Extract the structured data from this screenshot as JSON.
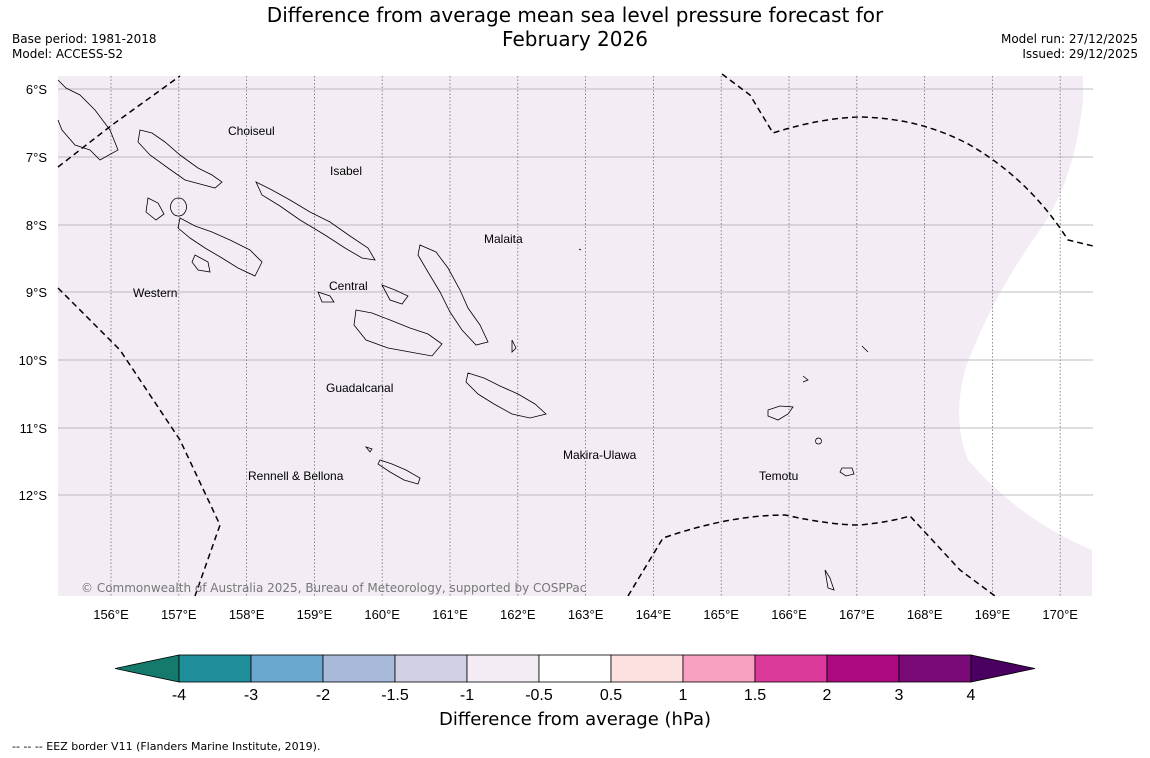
{
  "title_line1": "Difference from average mean sea level pressure forecast for",
  "title_line2": "February 2026",
  "base_period": "Base period: 1981-2018",
  "model": "Model: ACCESS-S2",
  "model_run": "Model run: 27/12/2025",
  "issued": "Issued: 29/12/2025",
  "copyright": "© Commonwealth of Australia 2025, Bureau of Meteorology, supported by COSPPac",
  "latitude_labels": [
    "6°S",
    "7°S",
    "8°S",
    "9°S",
    "10°S",
    "11°S",
    "12°S"
  ],
  "longitude_labels": [
    "156°E",
    "157°E",
    "158°E",
    "159°E",
    "160°E",
    "161°E",
    "162°E",
    "163°E",
    "164°E",
    "165°E",
    "166°E",
    "167°E",
    "168°E",
    "169°E",
    "170°E"
  ],
  "provinces": [
    "Choiseul",
    "Isabel",
    "Malaita",
    "Western",
    "Central",
    "Guadalcanal",
    "Makira-Ulawa",
    "Rennell & Bellona",
    "Temotu"
  ],
  "colorbar": {
    "ticks": [
      "-4",
      "-3",
      "-2",
      "-1.5",
      "-1",
      "-0.5",
      "0.5",
      "1",
      "1.5",
      "2",
      "3",
      "4"
    ],
    "colors": [
      "#147a6c",
      "#1e8f9a",
      "#6aa8d0",
      "#a8b9d9",
      "#cfd0e4",
      "#f3ecf5",
      "#ffffff",
      "#fde0e0",
      "#f7a0bf",
      "#db3a9a",
      "#ae0a80",
      "#7a0a78",
      "#4a0060"
    ],
    "label": "Difference from average (hPa)"
  },
  "map_fill_color": "#f3ecf5",
  "legend_note": "--  --  -- EEZ border V11 (Flanders Marine Institute, 2019)."
}
